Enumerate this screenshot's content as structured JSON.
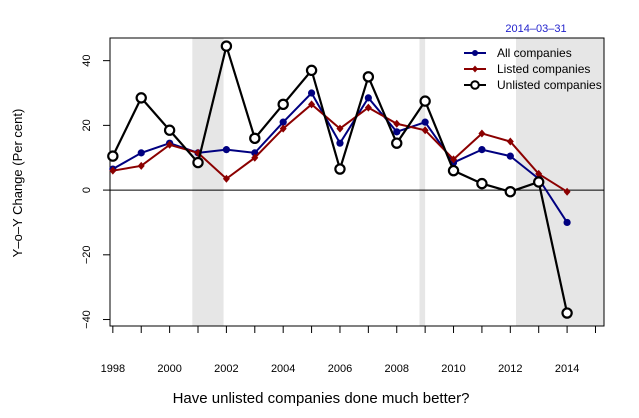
{
  "chart_data": {
    "type": "line",
    "date_stamp": "2014–03–31",
    "ylabel": "Y–o–Y Change (Per cent)",
    "caption": "Have unlisted companies done much better?",
    "xlim": [
      1997.9,
      2015.3
    ],
    "ylim": [
      -42,
      47
    ],
    "x_ticks": [
      1998,
      1999,
      2000,
      2001,
      2002,
      2003,
      2004,
      2005,
      2006,
      2007,
      2008,
      2009,
      2010,
      2011,
      2012,
      2013,
      2014,
      2015
    ],
    "x_tick_labels": [
      {
        "x": 1998,
        "label": "1998"
      },
      {
        "x": 2000,
        "label": "2000"
      },
      {
        "x": 2002,
        "label": "2002"
      },
      {
        "x": 2004,
        "label": "2004"
      },
      {
        "x": 2006,
        "label": "2006"
      },
      {
        "x": 2008,
        "label": "2008"
      },
      {
        "x": 2010,
        "label": "2010"
      },
      {
        "x": 2012,
        "label": "2012"
      },
      {
        "x": 2014,
        "label": "2014"
      }
    ],
    "y_ticks": [
      {
        "value": -40,
        "label": "−40"
      },
      {
        "value": -20,
        "label": "−20"
      },
      {
        "value": 0,
        "label": "0"
      },
      {
        "value": 20,
        "label": "20"
      },
      {
        "value": 40,
        "label": "40"
      }
    ],
    "reference_line": 0,
    "shaded_periods": [
      [
        2000.8,
        2001.9
      ],
      [
        2008.8,
        2009.0
      ],
      [
        2012.2,
        2015.3
      ]
    ],
    "legend_position": "top-right",
    "x": [
      1998,
      1999,
      2000,
      2001,
      2002,
      2003,
      2004,
      2005,
      2006,
      2007,
      2008,
      2009,
      2010,
      2011,
      2012,
      2013,
      2014
    ],
    "series": [
      {
        "name": "All companies",
        "color": "#000080",
        "marker": "dot",
        "values": [
          6.5,
          11.5,
          14.5,
          11.5,
          12.5,
          11.5,
          21,
          30,
          14.5,
          28.5,
          18,
          21,
          8.5,
          12.5,
          10.5,
          3.5,
          -10
        ]
      },
      {
        "name": "Listed companies",
        "color": "#8b0000",
        "marker": "diamond",
        "values": [
          6,
          7.5,
          14,
          11.5,
          3.5,
          10,
          19,
          26.5,
          19,
          25.5,
          20.5,
          18.5,
          9.5,
          17.5,
          15,
          5,
          -0.5
        ]
      },
      {
        "name": "Unlisted companies",
        "color": "#000000",
        "marker": "circle",
        "values": [
          10.5,
          28.5,
          18.5,
          8.5,
          44.5,
          16,
          26.5,
          37,
          6.5,
          35,
          14.5,
          27.5,
          6,
          2,
          -0.5,
          2.5,
          -38
        ]
      }
    ]
  }
}
